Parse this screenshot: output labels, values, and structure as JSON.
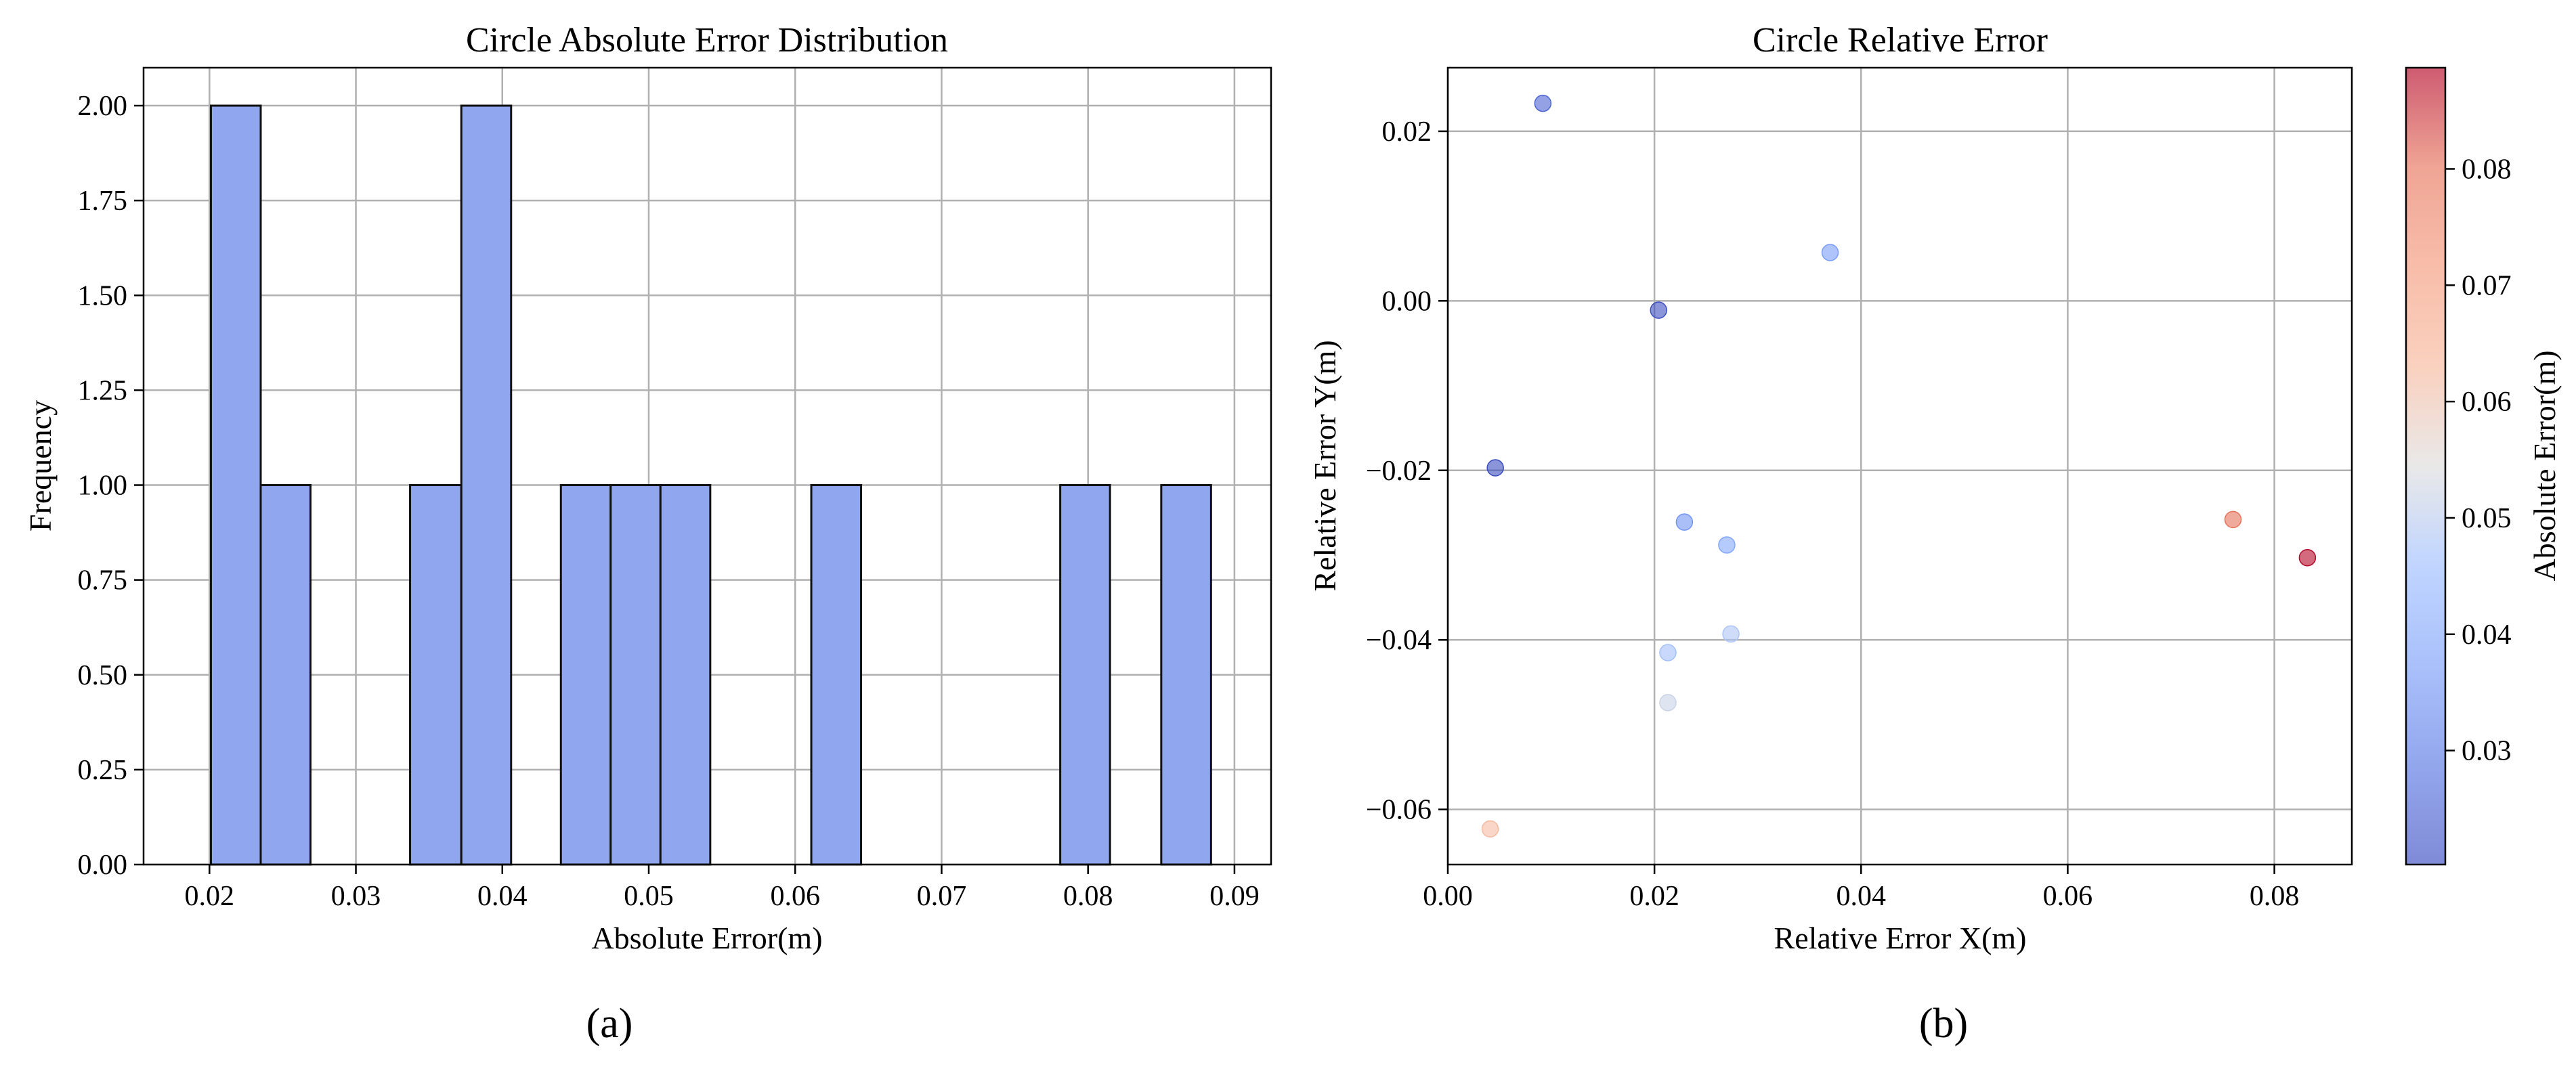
{
  "chart_data": [
    {
      "type": "bar",
      "title": "Circle Absolute Error Distribution",
      "xlabel": "Absolute Error(m)",
      "ylabel": "Frequency",
      "panel_label": "(a)",
      "xlim": [
        0.0155,
        0.0925
      ],
      "ylim": [
        0,
        2.1
      ],
      "x_ticks": [
        0.02,
        0.03,
        0.04,
        0.05,
        0.06,
        0.07,
        0.08,
        0.09
      ],
      "x_tick_labels": [
        "0.02",
        "0.03",
        "0.04",
        "0.05",
        "0.06",
        "0.07",
        "0.08",
        "0.09"
      ],
      "y_ticks": [
        0,
        0.25,
        0.5,
        0.75,
        1.0,
        1.25,
        1.5,
        1.75,
        2.0
      ],
      "y_tick_labels": [
        "0.00",
        "0.25",
        "0.50",
        "0.75",
        "1.00",
        "1.25",
        "1.50",
        "1.75",
        "2.00"
      ],
      "bin_edges": [
        0.0201,
        0.0235,
        0.0269,
        0.0303,
        0.0337,
        0.0372,
        0.0406,
        0.044,
        0.0474,
        0.0508,
        0.0542,
        0.0576,
        0.0611,
        0.0645,
        0.0679,
        0.0713,
        0.0747,
        0.0781,
        0.0815,
        0.085,
        0.0884
      ],
      "values": [
        2,
        1,
        0,
        0,
        1,
        2,
        0,
        1,
        1,
        1,
        0,
        0,
        1,
        0,
        0,
        0,
        0,
        1,
        0,
        1
      ],
      "grid": true,
      "bar_color": "#90a7f0"
    },
    {
      "type": "scatter",
      "title": "Circle Relative Error",
      "xlabel": "Relative Error X(m)",
      "ylabel": "Relative Error Y(m)",
      "panel_label": "(b)",
      "xlim": [
        0.0,
        0.0875
      ],
      "ylim": [
        -0.0665,
        0.0275
      ],
      "x_ticks": [
        0.0,
        0.02,
        0.04,
        0.06,
        0.08
      ],
      "x_tick_labels": [
        "0.00",
        "0.02",
        "0.04",
        "0.06",
        "0.08"
      ],
      "y_ticks": [
        -0.06,
        -0.04,
        -0.02,
        0.0,
        0.02
      ],
      "y_tick_labels": [
        "−0.06",
        "−0.04",
        "−0.02",
        "0.00",
        "0.02"
      ],
      "grid": true,
      "points": [
        {
          "x": 0.0092,
          "y": 0.0233,
          "c": 0.025
        },
        {
          "x": 0.0204,
          "y": -0.0011,
          "c": 0.0205
        },
        {
          "x": 0.037,
          "y": 0.0057,
          "c": 0.037
        },
        {
          "x": 0.0046,
          "y": -0.0197,
          "c": 0.0202
        },
        {
          "x": 0.0229,
          "y": -0.0261,
          "c": 0.0348
        },
        {
          "x": 0.027,
          "y": -0.0288,
          "c": 0.0395
        },
        {
          "x": 0.0274,
          "y": -0.0393,
          "c": 0.048
        },
        {
          "x": 0.0213,
          "y": -0.0415,
          "c": 0.0466
        },
        {
          "x": 0.0213,
          "y": -0.0474,
          "c": 0.0519
        },
        {
          "x": 0.0041,
          "y": -0.0623,
          "c": 0.0624
        },
        {
          "x": 0.076,
          "y": -0.0258,
          "c": 0.0803
        },
        {
          "x": 0.0832,
          "y": -0.0303,
          "c": 0.0885
        }
      ],
      "colorbar": {
        "label": "Absolute Error(m)",
        "range": [
          0.0202,
          0.0887
        ],
        "ticks": [
          0.03,
          0.04,
          0.05,
          0.06,
          0.07,
          0.08
        ],
        "tick_labels": [
          "0.03",
          "0.04",
          "0.05",
          "0.06",
          "0.07",
          "0.08"
        ],
        "colormap": "coolwarm"
      }
    }
  ]
}
